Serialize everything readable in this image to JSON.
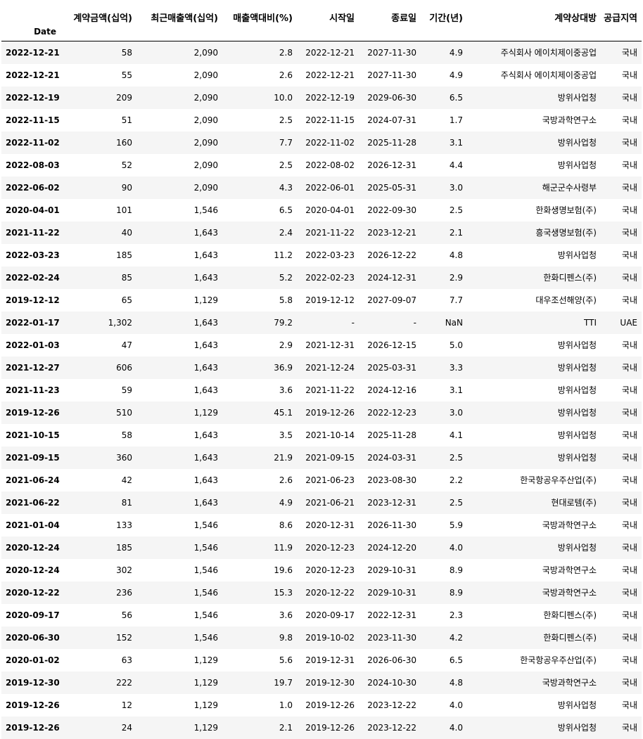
{
  "table": {
    "columns": [
      "계약금액(십억)",
      "최근매출액(십억)",
      "매출액대비(%)",
      "시작일",
      "종료일",
      "기간(년)",
      "계약상대방",
      "공급지역"
    ],
    "index_name": "Date",
    "rows": [
      [
        "2022-12-21",
        "58",
        "2,090",
        "2.8",
        "2022-12-21",
        "2027-11-30",
        "4.9",
        "주식회사 에이치제이중공업",
        "국내"
      ],
      [
        "2022-12-21",
        "55",
        "2,090",
        "2.6",
        "2022-12-21",
        "2027-11-30",
        "4.9",
        "주식회사 에이치제이중공업",
        "국내"
      ],
      [
        "2022-12-19",
        "209",
        "2,090",
        "10.0",
        "2022-12-19",
        "2029-06-30",
        "6.5",
        "방위사업청",
        "국내"
      ],
      [
        "2022-11-15",
        "51",
        "2,090",
        "2.5",
        "2022-11-15",
        "2024-07-31",
        "1.7",
        "국방과학연구소",
        "국내"
      ],
      [
        "2022-11-02",
        "160",
        "2,090",
        "7.7",
        "2022-11-02",
        "2025-11-28",
        "3.1",
        "방위사업청",
        "국내"
      ],
      [
        "2022-08-03",
        "52",
        "2,090",
        "2.5",
        "2022-08-02",
        "2026-12-31",
        "4.4",
        "방위사업청",
        "국내"
      ],
      [
        "2022-06-02",
        "90",
        "2,090",
        "4.3",
        "2022-06-01",
        "2025-05-31",
        "3.0",
        "해군군수사령부",
        "국내"
      ],
      [
        "2020-04-01",
        "101",
        "1,546",
        "6.5",
        "2020-04-01",
        "2022-09-30",
        "2.5",
        "한화생명보험(주)",
        "국내"
      ],
      [
        "2021-11-22",
        "40",
        "1,643",
        "2.4",
        "2021-11-22",
        "2023-12-21",
        "2.1",
        "흥국생명보험(주)",
        "국내"
      ],
      [
        "2022-03-23",
        "185",
        "1,643",
        "11.2",
        "2022-03-23",
        "2026-12-22",
        "4.8",
        "방위사업청",
        "국내"
      ],
      [
        "2022-02-24",
        "85",
        "1,643",
        "5.2",
        "2022-02-23",
        "2024-12-31",
        "2.9",
        "한화디펜스(주)",
        "국내"
      ],
      [
        "2019-12-12",
        "65",
        "1,129",
        "5.8",
        "2019-12-12",
        "2027-09-07",
        "7.7",
        "대우조선해양(주)",
        "국내"
      ],
      [
        "2022-01-17",
        "1,302",
        "1,643",
        "79.2",
        "-",
        "-",
        "NaN",
        "TTI",
        "UAE"
      ],
      [
        "2022-01-03",
        "47",
        "1,643",
        "2.9",
        "2021-12-31",
        "2026-12-15",
        "5.0",
        "방위사업청",
        "국내"
      ],
      [
        "2021-12-27",
        "606",
        "1,643",
        "36.9",
        "2021-12-24",
        "2025-03-31",
        "3.3",
        "방위사업청",
        "국내"
      ],
      [
        "2021-11-23",
        "59",
        "1,643",
        "3.6",
        "2021-11-22",
        "2024-12-16",
        "3.1",
        "방위사업청",
        "국내"
      ],
      [
        "2019-12-26",
        "510",
        "1,129",
        "45.1",
        "2019-12-26",
        "2022-12-23",
        "3.0",
        "방위사업청",
        "국내"
      ],
      [
        "2021-10-15",
        "58",
        "1,643",
        "3.5",
        "2021-10-14",
        "2025-11-28",
        "4.1",
        "방위사업청",
        "국내"
      ],
      [
        "2021-09-15",
        "360",
        "1,643",
        "21.9",
        "2021-09-15",
        "2024-03-31",
        "2.5",
        "방위사업청",
        "국내"
      ],
      [
        "2021-06-24",
        "42",
        "1,643",
        "2.6",
        "2021-06-23",
        "2023-08-30",
        "2.2",
        "한국항공우주산업(주)",
        "국내"
      ],
      [
        "2021-06-22",
        "81",
        "1,643",
        "4.9",
        "2021-06-21",
        "2023-12-31",
        "2.5",
        "현대로템(주)",
        "국내"
      ],
      [
        "2021-01-04",
        "133",
        "1,546",
        "8.6",
        "2020-12-31",
        "2026-11-30",
        "5.9",
        "국방과학연구소",
        "국내"
      ],
      [
        "2020-12-24",
        "185",
        "1,546",
        "11.9",
        "2020-12-23",
        "2024-12-20",
        "4.0",
        "방위사업청",
        "국내"
      ],
      [
        "2020-12-24",
        "302",
        "1,546",
        "19.6",
        "2020-12-23",
        "2029-10-31",
        "8.9",
        "국방과학연구소",
        "국내"
      ],
      [
        "2020-12-22",
        "236",
        "1,546",
        "15.3",
        "2020-12-22",
        "2029-10-31",
        "8.9",
        "국방과학연구소",
        "국내"
      ],
      [
        "2020-09-17",
        "56",
        "1,546",
        "3.6",
        "2020-09-17",
        "2022-12-31",
        "2.3",
        "한화디펜스(주)",
        "국내"
      ],
      [
        "2020-06-30",
        "152",
        "1,546",
        "9.8",
        "2019-10-02",
        "2023-11-30",
        "4.2",
        "한화디펜스(주)",
        "국내"
      ],
      [
        "2020-01-02",
        "63",
        "1,129",
        "5.6",
        "2019-12-31",
        "2026-06-30",
        "6.5",
        "한국항공우주산업(주)",
        "국내"
      ],
      [
        "2019-12-30",
        "222",
        "1,129",
        "19.7",
        "2019-12-30",
        "2024-10-30",
        "4.8",
        "국방과학연구소",
        "국내"
      ],
      [
        "2019-12-26",
        "12",
        "1,129",
        "1.0",
        "2019-12-26",
        "2023-12-22",
        "4.0",
        "방위사업청",
        "국내"
      ],
      [
        "2019-12-26",
        "24",
        "1,129",
        "2.1",
        "2019-12-26",
        "2023-12-22",
        "4.0",
        "방위사업청",
        "국내"
      ]
    ]
  }
}
